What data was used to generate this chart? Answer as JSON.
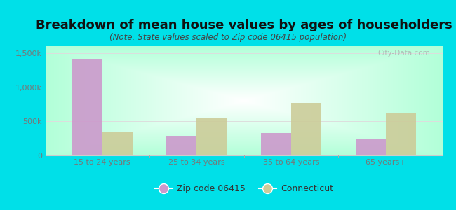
{
  "title": "Breakdown of mean house values by ages of householders",
  "subtitle": "(Note: State values scaled to Zip code 06415 population)",
  "categories": [
    "15 to 24 years",
    "25 to 34 years",
    "35 to 64 years",
    "65 years+"
  ],
  "zip_values": [
    1420000,
    290000,
    330000,
    250000
  ],
  "state_values": [
    350000,
    540000,
    770000,
    625000
  ],
  "zip_color": "#cc99cc",
  "state_color": "#cccc99",
  "background_outer": "#00e0e8",
  "ylim": [
    0,
    1600000
  ],
  "yticks": [
    0,
    500000,
    1000000,
    1500000
  ],
  "ytick_labels": [
    "0",
    "500k",
    "1,000k",
    "1,500k"
  ],
  "legend_zip_label": "Zip code 06415",
  "legend_state_label": "Connecticut",
  "watermark": "City-Data.com",
  "bar_width": 0.32,
  "title_fontsize": 13,
  "subtitle_fontsize": 8.5,
  "axis_fontsize": 8,
  "legend_fontsize": 9,
  "title_color": "#111111",
  "subtitle_color": "#444444",
  "tick_color": "#777777"
}
